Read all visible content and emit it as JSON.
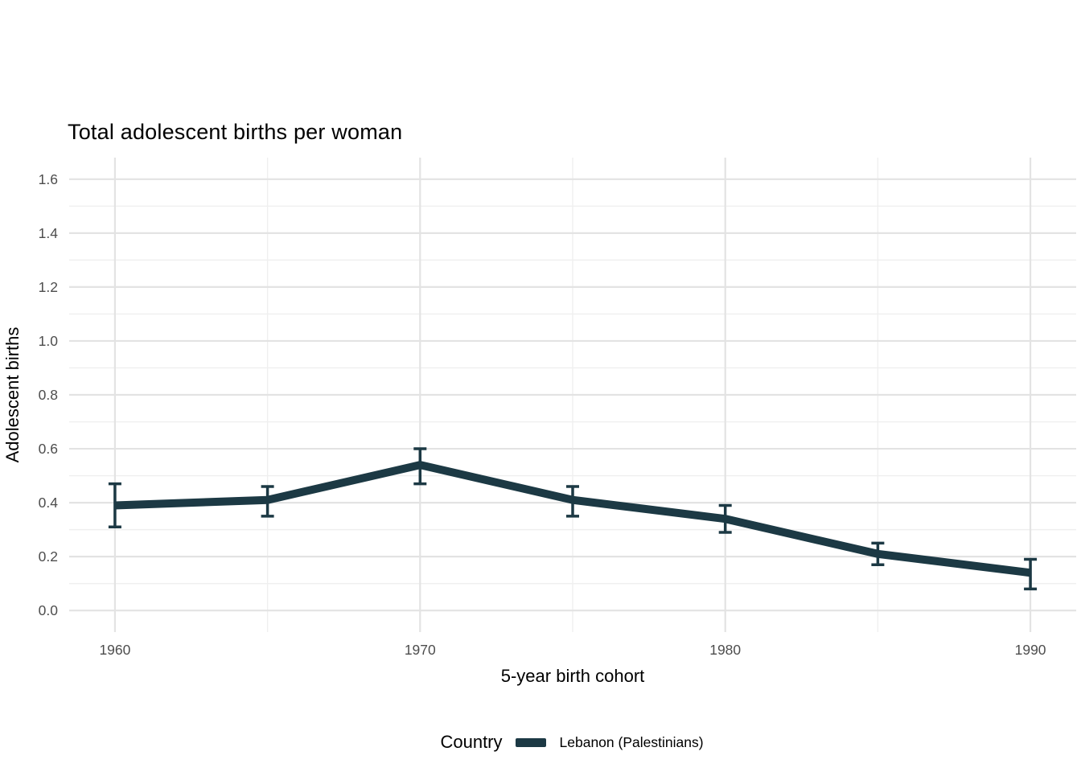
{
  "title": "Total adolescent births per woman",
  "x_axis": {
    "label": "5-year birth cohort"
  },
  "y_axis": {
    "label": "Adolescent births"
  },
  "legend": {
    "title": "Country",
    "items": [
      {
        "label": "Lebanon (Palestinians)",
        "color": "#1c3944"
      }
    ]
  },
  "colors": {
    "series": "#1c3944",
    "grid_major": "#e3e3e3",
    "grid_minor": "#efefef",
    "tick_label": "#4d4d4d",
    "text": "#000000",
    "background": "#ffffff"
  },
  "chart_data": {
    "type": "line",
    "title": "Total adolescent births per woman",
    "xlabel": "5-year birth cohort",
    "ylabel": "Adolescent births",
    "x": [
      1960,
      1965,
      1970,
      1975,
      1980,
      1985,
      1990
    ],
    "series": [
      {
        "name": "Lebanon (Palestinians)",
        "values": [
          0.39,
          0.41,
          0.54,
          0.41,
          0.34,
          0.21,
          0.14
        ],
        "ci_low": [
          0.31,
          0.35,
          0.47,
          0.35,
          0.29,
          0.17,
          0.08
        ],
        "ci_high": [
          0.47,
          0.46,
          0.6,
          0.46,
          0.39,
          0.25,
          0.19
        ]
      }
    ],
    "xlim": [
      1958.5,
      1991.5
    ],
    "ylim": [
      -0.08,
      1.68
    ],
    "x_major_ticks": [
      1960,
      1970,
      1980,
      1990
    ],
    "x_tick_labels": [
      "1960",
      "1970",
      "1980",
      "1990"
    ],
    "x_minor_ticks": [
      1965,
      1975,
      1985
    ],
    "y_major_ticks": [
      0.0,
      0.2,
      0.4,
      0.6,
      0.8,
      1.0,
      1.2,
      1.4,
      1.6
    ],
    "y_tick_labels": [
      "0.0",
      "0.2",
      "0.4",
      "0.6",
      "0.8",
      "1.0",
      "1.2",
      "1.4",
      "1.6"
    ],
    "y_minor_ticks": [
      0.1,
      0.3,
      0.5,
      0.7,
      0.9,
      1.1,
      1.3,
      1.5
    ],
    "grid": "major+minor",
    "legend_position": "bottom",
    "error_bars": true
  }
}
